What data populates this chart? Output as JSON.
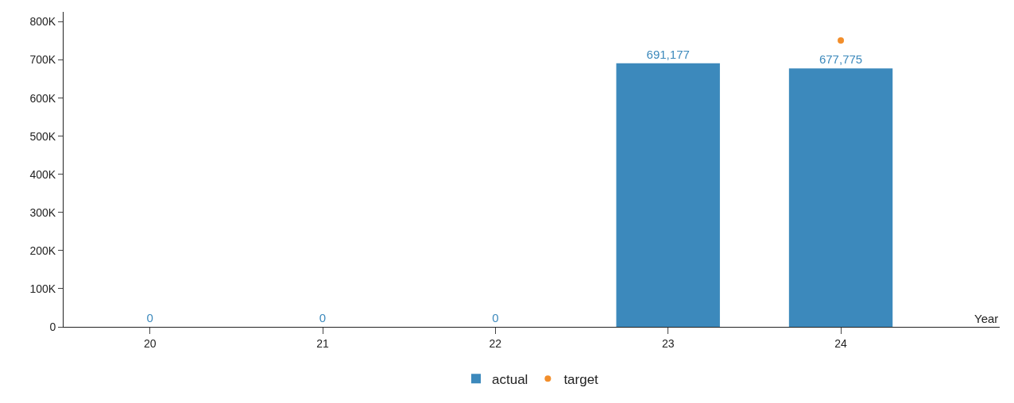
{
  "chart_data": {
    "type": "bar",
    "xlabel": "Year",
    "categories": [
      "20",
      "21",
      "22",
      "23",
      "24"
    ],
    "series": [
      {
        "name": "actual",
        "type": "bar",
        "color": "#3c89bc",
        "values": [
          0,
          0,
          0,
          691177,
          677775
        ],
        "value_labels": [
          "0",
          "0",
          "0",
          "691,177",
          "677,775"
        ]
      },
      {
        "name": "target",
        "type": "scatter",
        "color": "#f28e2b",
        "values": [
          null,
          null,
          null,
          null,
          751000
        ],
        "marker": "circle"
      }
    ],
    "ylim": [
      0,
      826000
    ],
    "yticks": [
      0,
      {
        "value": 100000,
        "label": "100K"
      },
      {
        "value": 200000,
        "label": "200K"
      },
      {
        "value": 300000,
        "label": "300K"
      },
      {
        "value": 400000,
        "label": "400K"
      },
      {
        "value": 500000,
        "label": "500K"
      },
      {
        "value": 600000,
        "label": "600K"
      },
      {
        "value": 700000,
        "label": "700K"
      },
      {
        "value": 800000,
        "label": "800K"
      }
    ],
    "grid": false,
    "legend": "bottom"
  }
}
